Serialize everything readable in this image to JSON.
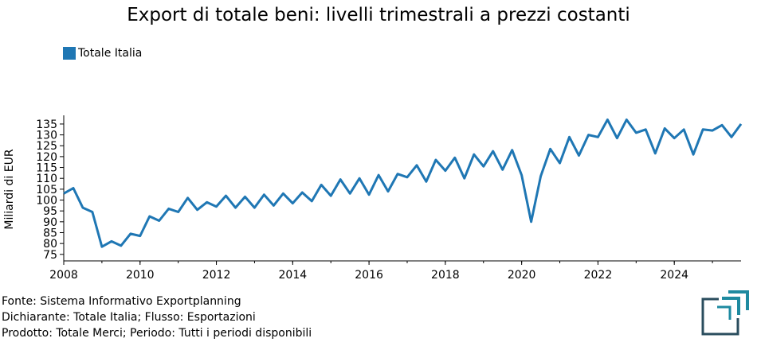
{
  "chart_data": {
    "type": "line",
    "title": "Export di totale beni: livelli trimestrali a prezzi costanti",
    "ylabel": "Miliardi di EUR",
    "xlabel": "",
    "legend_position": "top-left",
    "grid": false,
    "ylim": [
      72,
      139
    ],
    "xlim": [
      2008.0,
      2025.75
    ],
    "y_ticks": [
      "75",
      "80",
      "85",
      "90",
      "95",
      "100",
      "105",
      "110",
      "115",
      "120",
      "125",
      "130",
      "135"
    ],
    "x_ticks": [
      "2008",
      "2010",
      "2012",
      "2014",
      "2016",
      "2018",
      "2020",
      "2022",
      "2024"
    ],
    "series": [
      {
        "name": "Totale Italia",
        "color": "#1f77b4",
        "x": [
          2008.0,
          2008.25,
          2008.5,
          2008.75,
          2009.0,
          2009.25,
          2009.5,
          2009.75,
          2010.0,
          2010.25,
          2010.5,
          2010.75,
          2011.0,
          2011.25,
          2011.5,
          2011.75,
          2012.0,
          2012.25,
          2012.5,
          2012.75,
          2013.0,
          2013.25,
          2013.5,
          2013.75,
          2014.0,
          2014.25,
          2014.5,
          2014.75,
          2015.0,
          2015.25,
          2015.5,
          2015.75,
          2016.0,
          2016.25,
          2016.5,
          2016.75,
          2017.0,
          2017.25,
          2017.5,
          2017.75,
          2018.0,
          2018.25,
          2018.5,
          2018.75,
          2019.0,
          2019.25,
          2019.5,
          2019.75,
          2020.0,
          2020.25,
          2020.5,
          2020.75,
          2021.0,
          2021.25,
          2021.5,
          2021.75,
          2022.0,
          2022.25,
          2022.5,
          2022.75,
          2023.0,
          2023.25,
          2023.5,
          2023.75,
          2024.0,
          2024.25,
          2024.5,
          2024.75,
          2025.0,
          2025.25,
          2025.5,
          2025.75
        ],
        "values": [
          103,
          105.5,
          96.5,
          94.5,
          78.5,
          81,
          79,
          84.5,
          83.5,
          92.5,
          90.5,
          96,
          94.5,
          101,
          95.5,
          99,
          97,
          102,
          96.5,
          101.5,
          96.5,
          102.5,
          97.5,
          103,
          98.5,
          103.5,
          99.5,
          107,
          102,
          109.5,
          103,
          110,
          102.5,
          111.5,
          104,
          112,
          110.5,
          116,
          108.5,
          118.5,
          113.5,
          119.5,
          110,
          121,
          115.5,
          122.5,
          114,
          123,
          111.5,
          90,
          111,
          123.5,
          117,
          129,
          120.5,
          130,
          129,
          137,
          128.5,
          137,
          131,
          132.5,
          121.5,
          133,
          128.5,
          132.5,
          121,
          132.5,
          132,
          134.5,
          129,
          135
        ]
      }
    ]
  },
  "legend": {
    "label": "Totale Italia",
    "color": "#1f77b4"
  },
  "footer": {
    "source": "Fonte: Sistema Informativo Exportplanning",
    "declarant": "Dichiarante: Totale Italia; Flusso: Esportazioni",
    "product": "Prodotto: Totale Merci; Periodo: Tutti i periodi disponibili"
  },
  "logo": {
    "icon": "exportplanning-logo-icon",
    "colors": [
      "#1e8aa0",
      "#2a4d5e"
    ]
  }
}
